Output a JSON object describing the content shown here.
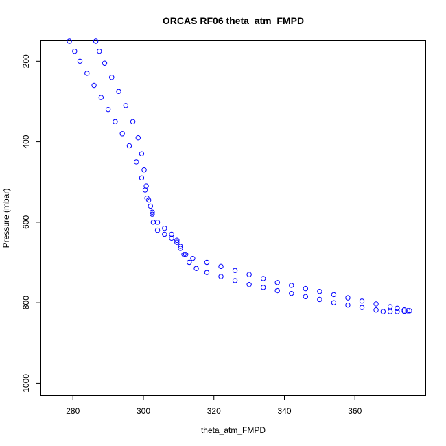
{
  "chart_data": {
    "type": "scatter",
    "title": "ORCAS RF06 theta_atm_FMPD",
    "xlabel": "theta_atm_FMPD",
    "ylabel": "Pressure (mbar)",
    "xlim": [
      271,
      380
    ],
    "ylim": [
      1030,
      150
    ],
    "y_reversed": true,
    "x_ticks": [
      280,
      300,
      320,
      340,
      360
    ],
    "y_ticks": [
      200,
      400,
      600,
      800,
      1000
    ],
    "grid": false,
    "legend": "none",
    "marker": "open-circle",
    "color": "#0000ff",
    "series": [
      {
        "x": [
          279.0,
          280.5,
          282.0,
          284.0,
          286.0,
          288.0,
          290.0,
          292.0,
          294.0,
          296.0,
          298.0,
          299.5,
          300.5,
          301.0,
          302.0,
          302.5,
          302.8,
          304.0,
          306.0,
          308.0,
          309.5,
          310.5,
          312.0,
          314.0,
          318.0,
          322.0,
          326.0,
          330.0,
          334.0,
          338.0,
          342.0,
          346.0,
          350.0,
          354.0,
          358.0,
          362.0,
          366.0,
          370.0,
          372.0,
          374.0,
          375.0
        ],
        "y": [
          150,
          175,
          200,
          230,
          260,
          290,
          320,
          350,
          380,
          410,
          450,
          490,
          520,
          540,
          560,
          580,
          600,
          620,
          630,
          640,
          650,
          665,
          680,
          690,
          700,
          710,
          720,
          730,
          740,
          750,
          757,
          765,
          772,
          780,
          788,
          796,
          803,
          810,
          814,
          818,
          820
        ]
      },
      {
        "x": [
          286.5,
          287.5,
          289.0,
          291.0,
          293.0,
          295.0,
          297.0,
          298.5,
          299.5,
          300.2,
          300.8,
          301.5,
          302.5,
          304.0,
          306.0,
          308.0,
          309.5,
          310.5,
          311.5,
          313.0,
          315.0,
          318.0,
          322.0,
          326.0,
          330.0,
          334.0,
          338.0,
          342.0,
          346.0,
          350.0,
          354.0,
          358.0,
          362.0,
          366.0,
          368.0,
          370.0,
          372.0,
          374.0,
          375.5
        ],
        "y": [
          150,
          175,
          205,
          240,
          275,
          310,
          350,
          390,
          430,
          470,
          510,
          545,
          575,
          600,
          615,
          630,
          645,
          660,
          680,
          700,
          715,
          725,
          735,
          745,
          755,
          762,
          770,
          777,
          785,
          792,
          800,
          806,
          812,
          818,
          822,
          822,
          822,
          821,
          820
        ]
      }
    ]
  }
}
